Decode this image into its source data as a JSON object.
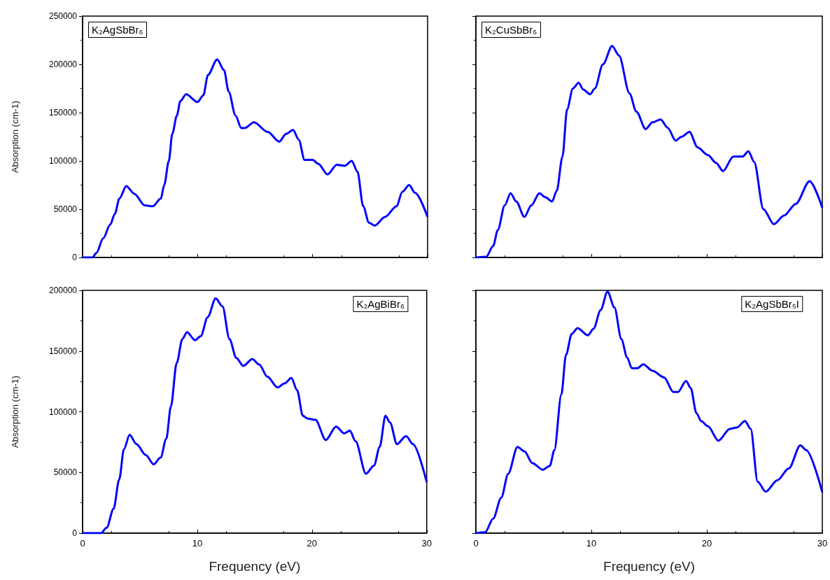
{
  "chart_data": [
    {
      "type": "line",
      "title": "K₂AgSbBr₆",
      "ylabel": "Absorption (cm-1)",
      "color": "#0000ff",
      "marker": "none",
      "tick_labels": "y",
      "xlim": [
        0,
        30
      ],
      "xticks": [
        0,
        10,
        20,
        30
      ],
      "ylim": [
        0,
        250000
      ],
      "yticks": [
        0,
        50000,
        100000,
        150000,
        200000,
        250000
      ],
      "x": [
        0,
        0.86,
        1.2,
        1.8,
        2.4,
        2.8,
        3.2,
        3.8,
        4.5,
        5.4,
        6.1,
        6.8,
        7.1,
        7.5,
        7.8,
        8.2,
        8.5,
        9.0,
        10.0,
        10.5,
        10.9,
        11.7,
        12.3,
        12.7,
        13.3,
        13.8,
        14.1,
        14.9,
        16.1,
        17.1,
        17.7,
        18.3,
        18.8,
        19.3,
        20.0,
        20.5,
        21.3,
        22.1,
        22.8,
        23.4,
        23.9,
        24.4,
        24.9,
        25.4,
        26.3,
        27.3,
        27.8,
        28.4,
        28.9,
        30
      ],
      "values": [
        0,
        0,
        4700,
        20000,
        34000,
        45000,
        61000,
        74000,
        66000,
        54000,
        53000,
        61000,
        75000,
        100000,
        128000,
        147000,
        162000,
        169000,
        161000,
        168000,
        189000,
        205000,
        194000,
        172000,
        147000,
        134000,
        134000,
        140000,
        130000,
        120000,
        128000,
        132000,
        122000,
        101000,
        101000,
        97000,
        86000,
        96000,
        95000,
        100000,
        89000,
        53000,
        36000,
        33000,
        42000,
        53000,
        68000,
        75000,
        67000,
        42000
      ]
    },
    {
      "type": "line",
      "title": "K₂CuSbBr₆",
      "color": "#0000ff",
      "marker": "none",
      "tick_labels": false,
      "xlim": [
        0,
        30
      ],
      "xticks": [
        0,
        10,
        20,
        30
      ],
      "ylim": [
        0,
        250000
      ],
      "yticks": [
        0,
        50000,
        100000,
        150000,
        200000,
        250000
      ],
      "x": [
        0,
        0.9,
        1.5,
        1.9,
        2.5,
        3.0,
        3.5,
        4.2,
        4.8,
        5.5,
        6.0,
        6.6,
        7.0,
        7.5,
        7.9,
        8.4,
        8.9,
        9.3,
        9.9,
        10.3,
        11.0,
        11.8,
        12.4,
        13.3,
        13.9,
        14.7,
        15.3,
        16.0,
        16.6,
        17.3,
        17.8,
        18.5,
        19.2,
        20.1,
        20.8,
        21.4,
        22.3,
        23.1,
        23.6,
        24.1,
        24.9,
        25.8,
        26.7,
        27.7,
        28.9,
        30
      ],
      "values": [
        0,
        800,
        12000,
        28500,
        54000,
        66500,
        58000,
        42000,
        54000,
        66500,
        62500,
        58000,
        69000,
        104500,
        153500,
        175000,
        181000,
        174000,
        169000,
        175000,
        200000,
        219000,
        209000,
        170000,
        151000,
        133000,
        140000,
        143000,
        134500,
        121000,
        125000,
        130000,
        114000,
        106000,
        98000,
        89500,
        104500,
        104500,
        110000,
        99000,
        50000,
        34500,
        43500,
        55500,
        79000,
        51500
      ]
    },
    {
      "type": "line",
      "title": "K₂AgBiBr₆",
      "xlabel": "Frequency (eV)",
      "ylabel": "Absorption (cm-1)",
      "color": "#0000ff",
      "marker": "none",
      "xlim": [
        0,
        30
      ],
      "xticks": [
        0,
        10,
        20,
        30
      ],
      "ylim": [
        0,
        200000
      ],
      "yticks": [
        0,
        50000,
        100000,
        150000,
        200000
      ],
      "x": [
        0,
        1.6,
        2.1,
        2.7,
        3.2,
        3.6,
        4.1,
        4.7,
        5.5,
        6.2,
        6.8,
        7.3,
        7.7,
        8.2,
        8.7,
        9.1,
        9.8,
        10.3,
        10.9,
        11.6,
        12.2,
        12.8,
        13.4,
        14.0,
        14.8,
        15.4,
        16.1,
        17.0,
        17.6,
        18.2,
        18.7,
        19.2,
        19.6,
        20.3,
        21.2,
        22.1,
        22.8,
        23.3,
        23.8,
        24.7,
        25.4,
        25.9,
        26.4,
        26.8,
        27.4,
        28.2,
        28.8,
        30
      ],
      "values": [
        0,
        0,
        4400,
        20000,
        44400,
        69000,
        81000,
        73300,
        64400,
        56700,
        62200,
        77800,
        104400,
        140000,
        160000,
        165600,
        158900,
        162200,
        177800,
        193300,
        186700,
        160000,
        144400,
        137800,
        143300,
        138900,
        128900,
        120000,
        123300,
        127800,
        117800,
        96700,
        94400,
        93300,
        76700,
        87800,
        82200,
        84400,
        75600,
        48900,
        55600,
        71100,
        96700,
        91100,
        73300,
        80000,
        73300,
        42000
      ]
    },
    {
      "type": "line",
      "title": "K₂AgSbBr₅I",
      "xlabel": "Frequency (eV)",
      "color": "#0000ff",
      "marker": "none",
      "tick_labels": "x",
      "xlim": [
        0,
        30
      ],
      "xticks": [
        0,
        10,
        20,
        30
      ],
      "ylim": [
        0,
        200000
      ],
      "yticks": [
        0,
        50000,
        100000,
        150000,
        200000
      ],
      "x": [
        0,
        0.8,
        1.5,
        2.2,
        2.8,
        3.6,
        4.2,
        4.9,
        5.8,
        6.4,
        6.8,
        7.4,
        7.8,
        8.3,
        8.8,
        9.7,
        10.2,
        10.8,
        11.4,
        12.0,
        12.6,
        13.1,
        13.5,
        14.0,
        14.5,
        15.3,
        16.3,
        17.1,
        17.5,
        18.2,
        18.6,
        19.1,
        19.5,
        20.1,
        21.0,
        22.0,
        22.6,
        23.3,
        23.8,
        24.4,
        25.1,
        26.1,
        27.1,
        28.1,
        28.6,
        30
      ],
      "values": [
        0,
        700,
        12000,
        29300,
        48900,
        71100,
        67400,
        57600,
        52200,
        55400,
        68500,
        114100,
        146700,
        164100,
        168900,
        163000,
        168500,
        183700,
        199000,
        185900,
        159800,
        144600,
        135900,
        135900,
        139100,
        133700,
        128300,
        116300,
        116300,
        125400,
        119600,
        98900,
        92400,
        88000,
        76100,
        85900,
        87000,
        92400,
        85900,
        42400,
        34100,
        43500,
        53300,
        72400,
        68500,
        33700
      ]
    }
  ]
}
